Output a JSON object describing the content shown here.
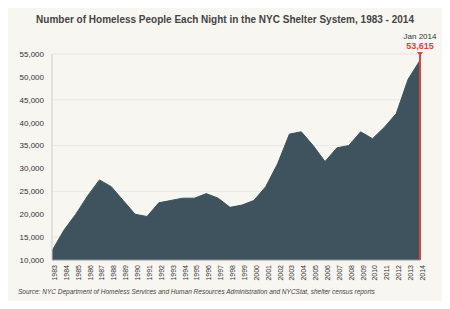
{
  "chart_data": {
    "type": "area",
    "title": "Number of Homeless People Each Night in the NYC Shelter System, 1983 - 2014",
    "source": "Source:  NYC Department of Homeless Services and Human Resources Administration and NYCStat, shelter census reports",
    "categories": [
      "1983",
      "1984",
      "1985",
      "1986",
      "1987",
      "1988",
      "1989",
      "1990",
      "1991",
      "1992",
      "1993",
      "1994",
      "1995",
      "1996",
      "1997",
      "1998",
      "1999",
      "2000",
      "2001",
      "2002",
      "2003",
      "2004",
      "2005",
      "2006",
      "2007",
      "2008",
      "2009",
      "2010",
      "2011",
      "2012",
      "2013",
      "2014"
    ],
    "values": [
      12000,
      16500,
      20000,
      24000,
      27500,
      26000,
      23000,
      20000,
      19500,
      22500,
      23000,
      23500,
      23500,
      24500,
      23500,
      21500,
      22000,
      23000,
      26000,
      31000,
      37500,
      38000,
      35000,
      31500,
      34500,
      35000,
      38000,
      36500,
      39000,
      42000,
      49500,
      53615
    ],
    "color": "#3e535d",
    "ylim": [
      10000,
      55000
    ],
    "yticks": [
      {
        "value": 10000,
        "label": "10,000"
      },
      {
        "value": 15000,
        "label": "15,000"
      },
      {
        "value": 20000,
        "label": "20,000"
      },
      {
        "value": 25000,
        "label": "25,000"
      },
      {
        "value": 30000,
        "label": "30,000"
      },
      {
        "value": 35000,
        "label": "35,000"
      },
      {
        "value": 40000,
        "label": "40,000"
      },
      {
        "value": 45000,
        "label": "45,000"
      },
      {
        "value": 50000,
        "label": "50,000"
      },
      {
        "value": 55000,
        "label": "55,000"
      }
    ],
    "grid": true,
    "annotations": [
      {
        "x": "2014",
        "text": "Jan 2014",
        "value": 53615,
        "label": "53,615",
        "color": "#d9473b"
      }
    ]
  }
}
